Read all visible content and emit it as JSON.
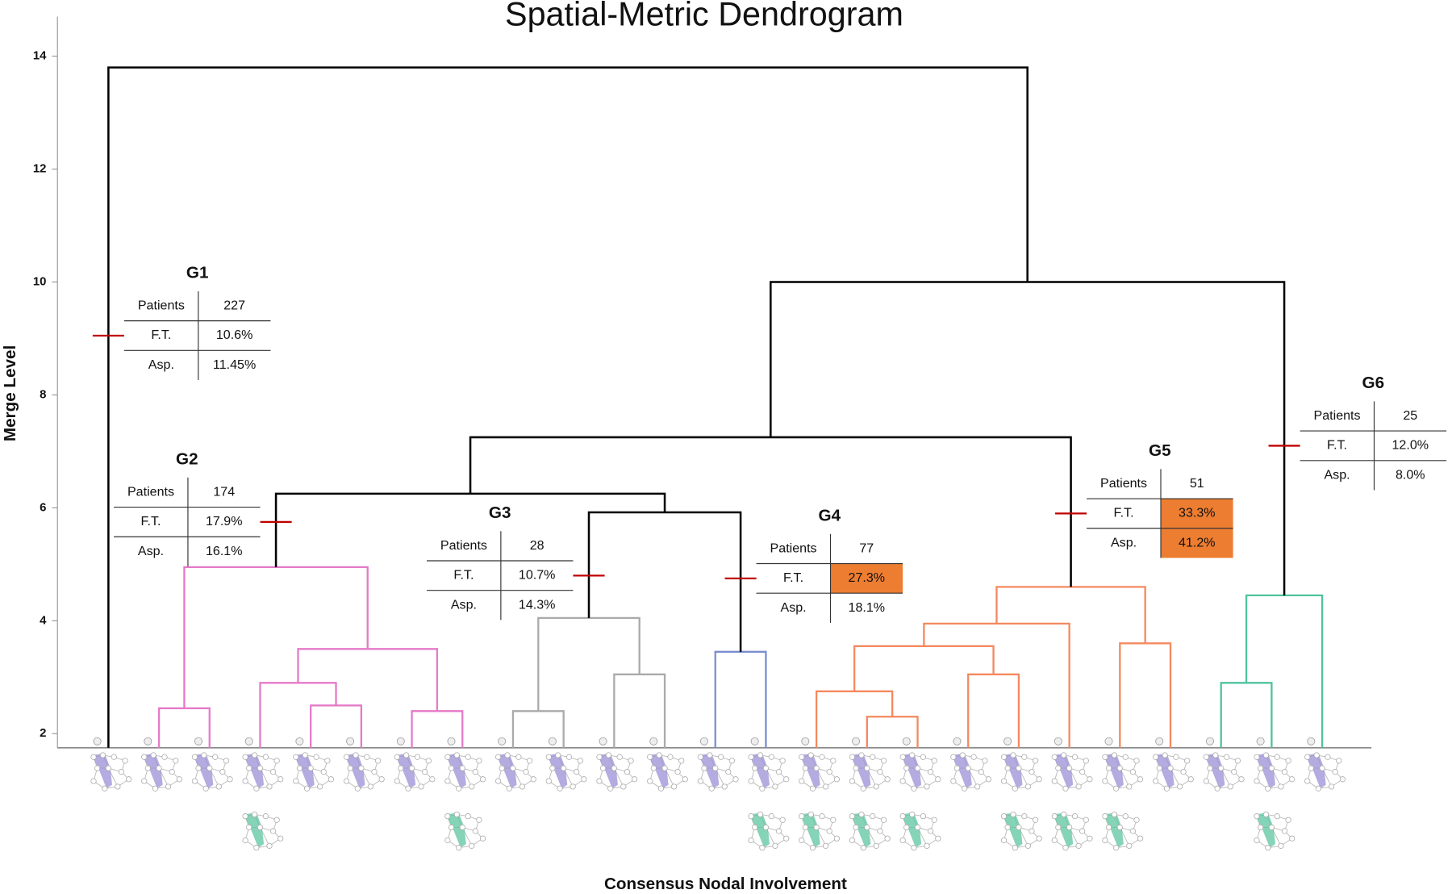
{
  "chart_data": {
    "type": "dendrogram",
    "title": "Spatial-Metric Dendrogram",
    "y_label": "Merge Level",
    "x_label": "Consensus Nodal Involvement",
    "ylim": [
      1.75,
      14.7
    ],
    "yticks": [
      2,
      4,
      6,
      8,
      10,
      12,
      14
    ],
    "leaf_count": 25,
    "merges": [
      {
        "children": [
          1,
          2
        ],
        "height": 2.45,
        "color": "#e57ac8"
      },
      {
        "children": [
          4,
          5
        ],
        "height": 2.5,
        "color": "#e57ac8"
      },
      {
        "children": [
          3,
          26
        ],
        "height": 2.9,
        "color": "#e57ac8"
      },
      {
        "children": [
          6,
          7
        ],
        "height": 2.4,
        "color": "#e57ac8"
      },
      {
        "children": [
          27,
          28
        ],
        "height": 3.5,
        "color": "#e57ac8"
      },
      {
        "children": [
          25,
          29
        ],
        "height": 4.95,
        "color": "#e57ac8"
      },
      {
        "children": [
          8,
          9
        ],
        "height": 2.4,
        "color": "#aaaaaa"
      },
      {
        "children": [
          10,
          11
        ],
        "height": 3.05,
        "color": "#aaaaaa"
      },
      {
        "children": [
          31,
          32
        ],
        "height": 4.05,
        "color": "#aaaaaa"
      },
      {
        "children": [
          12,
          13
        ],
        "height": 3.45,
        "color": "#7b8fd0"
      },
      {
        "children": [
          15,
          16
        ],
        "height": 2.3,
        "color": "#f4895f"
      },
      {
        "children": [
          14,
          35
        ],
        "height": 2.75,
        "color": "#f4895f"
      },
      {
        "children": [
          17,
          18
        ],
        "height": 3.05,
        "color": "#f4895f"
      },
      {
        "children": [
          36,
          37
        ],
        "height": 3.55,
        "color": "#f4895f"
      },
      {
        "children": [
          38,
          19
        ],
        "height": 3.95,
        "color": "#f4895f"
      },
      {
        "children": [
          20,
          21
        ],
        "height": 3.6,
        "color": "#f4895f"
      },
      {
        "children": [
          39,
          40
        ],
        "height": 4.6,
        "color": "#f4895f"
      },
      {
        "children": [
          22,
          23
        ],
        "height": 2.9,
        "color": "#4fc39e"
      },
      {
        "children": [
          42,
          24
        ],
        "height": 4.45,
        "color": "#4fc39e"
      },
      {
        "children": [
          33,
          34
        ],
        "height": 5.92,
        "color": "#000000"
      },
      {
        "children": [
          30,
          44
        ],
        "height": 6.25,
        "color": "#000000"
      },
      {
        "children": [
          45,
          41
        ],
        "height": 7.25,
        "color": "#000000"
      },
      {
        "children": [
          46,
          43
        ],
        "height": 10.0,
        "color": "#000000"
      },
      {
        "children": [
          0,
          47
        ],
        "height": 13.8,
        "color": "#000000"
      }
    ],
    "cut_color": "#c00000",
    "highlight_color": "#ed7d31",
    "groups": [
      {
        "name": "G1",
        "node": 0,
        "cut": 9.05,
        "rows": [
          {
            "label": "Patients",
            "value": "227"
          },
          {
            "label": "F.T.",
            "value": "10.6%"
          },
          {
            "label": "Asp.",
            "value": "11.45%"
          }
        ]
      },
      {
        "name": "G2",
        "node": 30,
        "cut": 5.75,
        "rows": [
          {
            "label": "Patients",
            "value": "174"
          },
          {
            "label": "F.T.",
            "value": "17.9%"
          },
          {
            "label": "Asp.",
            "value": "16.1%"
          }
        ]
      },
      {
        "name": "G3",
        "node": 33,
        "cut": 4.8,
        "rows": [
          {
            "label": "Patients",
            "value": "28"
          },
          {
            "label": "F.T.",
            "value": "10.7%"
          },
          {
            "label": "Asp.",
            "value": "14.3%"
          }
        ]
      },
      {
        "name": "G4",
        "node": 34,
        "cut": 4.75,
        "rows": [
          {
            "label": "Patients",
            "value": "77"
          },
          {
            "label": "F.T.",
            "value": "27.3%",
            "highlight": true
          },
          {
            "label": "Asp.",
            "value": "18.1%"
          }
        ]
      },
      {
        "name": "G5",
        "node": 41,
        "cut": 5.9,
        "rows": [
          {
            "label": "Patients",
            "value": "51"
          },
          {
            "label": "F.T.",
            "value": "33.3%",
            "highlight": true
          },
          {
            "label": "Asp.",
            "value": "41.2%",
            "highlight": true
          }
        ]
      },
      {
        "name": "G6",
        "node": 43,
        "cut": 7.1,
        "rows": [
          {
            "label": "Patients",
            "value": "25"
          },
          {
            "label": "F.T.",
            "value": "12.0%"
          },
          {
            "label": "Asp.",
            "value": "8.0%"
          }
        ]
      }
    ]
  }
}
